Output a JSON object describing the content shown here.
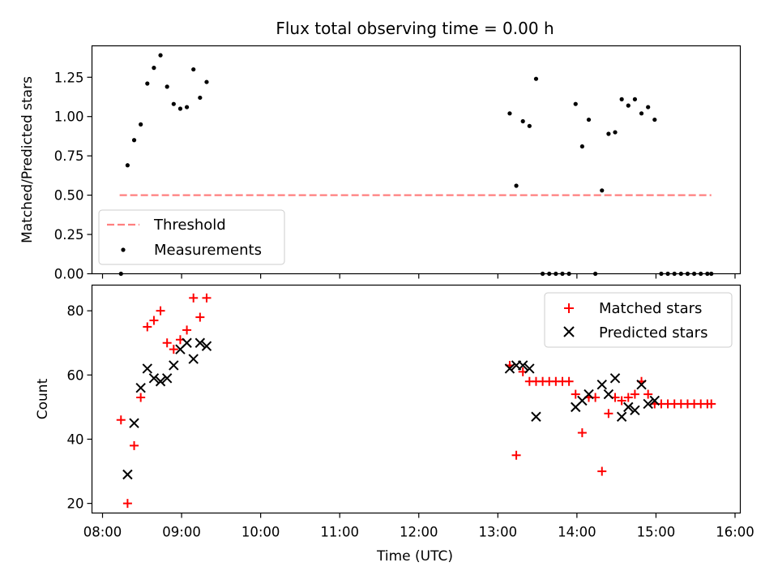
{
  "chart_data": [
    {
      "type": "scatter",
      "title": "Flux total observing time = 0.00 h",
      "xlabel": "",
      "ylabel": "Matched/Predicted stars",
      "xlim": [
        "07:52",
        "16:04"
      ],
      "ylim": [
        0,
        1.45
      ],
      "yticks": [
        "0.00",
        "0.25",
        "0.50",
        "0.75",
        "1.00",
        "1.25"
      ],
      "grid": false,
      "legend_position": "lower-left",
      "series": [
        {
          "name": "Threshold",
          "style": "dashed-line",
          "color": "#ff7f7f",
          "points": [
            {
              "x": "08:13",
              "y": 0.5
            },
            {
              "x": "15:42",
              "y": 0.5
            }
          ]
        },
        {
          "name": "Measurements",
          "style": "dot",
          "color": "#000000",
          "points": [
            {
              "x": "08:14",
              "y": 0.0
            },
            {
              "x": "08:19",
              "y": 0.69
            },
            {
              "x": "08:24",
              "y": 0.85
            },
            {
              "x": "08:29",
              "y": 0.95
            },
            {
              "x": "08:34",
              "y": 1.21
            },
            {
              "x": "08:39",
              "y": 1.31
            },
            {
              "x": "08:44",
              "y": 1.39
            },
            {
              "x": "08:49",
              "y": 1.19
            },
            {
              "x": "08:54",
              "y": 1.08
            },
            {
              "x": "08:59",
              "y": 1.05
            },
            {
              "x": "09:04",
              "y": 1.06
            },
            {
              "x": "09:09",
              "y": 1.3
            },
            {
              "x": "09:14",
              "y": 1.12
            },
            {
              "x": "09:19",
              "y": 1.22
            },
            {
              "x": "13:09",
              "y": 1.02
            },
            {
              "x": "13:14",
              "y": 0.56
            },
            {
              "x": "13:19",
              "y": 0.97
            },
            {
              "x": "13:24",
              "y": 0.94
            },
            {
              "x": "13:29",
              "y": 1.24
            },
            {
              "x": "13:34",
              "y": 0.0
            },
            {
              "x": "13:39",
              "y": 0.0
            },
            {
              "x": "13:44",
              "y": 0.0
            },
            {
              "x": "13:49",
              "y": 0.0
            },
            {
              "x": "13:54",
              "y": 0.0
            },
            {
              "x": "13:59",
              "y": 1.08
            },
            {
              "x": "14:04",
              "y": 0.81
            },
            {
              "x": "14:09",
              "y": 0.98
            },
            {
              "x": "14:14",
              "y": 0.0
            },
            {
              "x": "14:19",
              "y": 0.53
            },
            {
              "x": "14:24",
              "y": 0.89
            },
            {
              "x": "14:29",
              "y": 0.9
            },
            {
              "x": "14:34",
              "y": 1.11
            },
            {
              "x": "14:39",
              "y": 1.07
            },
            {
              "x": "14:44",
              "y": 1.11
            },
            {
              "x": "14:49",
              "y": 1.02
            },
            {
              "x": "14:54",
              "y": 1.06
            },
            {
              "x": "14:59",
              "y": 0.98
            },
            {
              "x": "15:04",
              "y": 0.0
            },
            {
              "x": "15:09",
              "y": 0.0
            },
            {
              "x": "15:14",
              "y": 0.0
            },
            {
              "x": "15:19",
              "y": 0.0
            },
            {
              "x": "15:24",
              "y": 0.0
            },
            {
              "x": "15:29",
              "y": 0.0
            },
            {
              "x": "15:34",
              "y": 0.0
            },
            {
              "x": "15:39",
              "y": 0.0
            },
            {
              "x": "15:42",
              "y": 0.0
            }
          ]
        }
      ]
    },
    {
      "type": "scatter",
      "title": "",
      "xlabel": "Time (UTC)",
      "ylabel": "Count",
      "xlim": [
        "07:52",
        "16:04"
      ],
      "ylim": [
        17,
        88
      ],
      "xticks": [
        "08:00",
        "09:00",
        "10:00",
        "11:00",
        "12:00",
        "13:00",
        "14:00",
        "15:00",
        "16:00"
      ],
      "yticks": [
        "20",
        "40",
        "60",
        "80"
      ],
      "grid": false,
      "legend_position": "upper-right",
      "series": [
        {
          "name": "Matched stars",
          "marker": "+",
          "color": "#ff0000",
          "points": [
            {
              "x": "08:14",
              "y": 46
            },
            {
              "x": "08:19",
              "y": 20
            },
            {
              "x": "08:24",
              "y": 38
            },
            {
              "x": "08:29",
              "y": 53
            },
            {
              "x": "08:34",
              "y": 75
            },
            {
              "x": "08:39",
              "y": 77
            },
            {
              "x": "08:44",
              "y": 80
            },
            {
              "x": "08:49",
              "y": 70
            },
            {
              "x": "08:54",
              "y": 68
            },
            {
              "x": "08:59",
              "y": 71
            },
            {
              "x": "09:04",
              "y": 74
            },
            {
              "x": "09:09",
              "y": 84
            },
            {
              "x": "09:14",
              "y": 78
            },
            {
              "x": "09:19",
              "y": 84
            },
            {
              "x": "13:09",
              "y": 63
            },
            {
              "x": "13:14",
              "y": 35
            },
            {
              "x": "13:19",
              "y": 61
            },
            {
              "x": "13:24",
              "y": 58
            },
            {
              "x": "13:29",
              "y": 58
            },
            {
              "x": "13:34",
              "y": 58
            },
            {
              "x": "13:39",
              "y": 58
            },
            {
              "x": "13:44",
              "y": 58
            },
            {
              "x": "13:49",
              "y": 58
            },
            {
              "x": "13:54",
              "y": 58
            },
            {
              "x": "13:59",
              "y": 54
            },
            {
              "x": "14:04",
              "y": 42
            },
            {
              "x": "14:09",
              "y": 53
            },
            {
              "x": "14:14",
              "y": 53
            },
            {
              "x": "14:19",
              "y": 30
            },
            {
              "x": "14:24",
              "y": 48
            },
            {
              "x": "14:29",
              "y": 53
            },
            {
              "x": "14:34",
              "y": 52
            },
            {
              "x": "14:39",
              "y": 53
            },
            {
              "x": "14:44",
              "y": 54
            },
            {
              "x": "14:49",
              "y": 58
            },
            {
              "x": "14:54",
              "y": 54
            },
            {
              "x": "14:59",
              "y": 51
            },
            {
              "x": "15:04",
              "y": 51
            },
            {
              "x": "15:09",
              "y": 51
            },
            {
              "x": "15:14",
              "y": 51
            },
            {
              "x": "15:19",
              "y": 51
            },
            {
              "x": "15:24",
              "y": 51
            },
            {
              "x": "15:29",
              "y": 51
            },
            {
              "x": "15:34",
              "y": 51
            },
            {
              "x": "15:39",
              "y": 51
            },
            {
              "x": "15:42",
              "y": 51
            }
          ]
        },
        {
          "name": "Predicted stars",
          "marker": "x",
          "color": "#000000",
          "points": [
            {
              "x": "08:19",
              "y": 29
            },
            {
              "x": "08:24",
              "y": 45
            },
            {
              "x": "08:29",
              "y": 56
            },
            {
              "x": "08:34",
              "y": 62
            },
            {
              "x": "08:39",
              "y": 59
            },
            {
              "x": "08:44",
              "y": 58
            },
            {
              "x": "08:49",
              "y": 59
            },
            {
              "x": "08:54",
              "y": 63
            },
            {
              "x": "08:59",
              "y": 68
            },
            {
              "x": "09:04",
              "y": 70
            },
            {
              "x": "09:09",
              "y": 65
            },
            {
              "x": "09:14",
              "y": 70
            },
            {
              "x": "09:19",
              "y": 69
            },
            {
              "x": "13:09",
              "y": 62
            },
            {
              "x": "13:14",
              "y": 63
            },
            {
              "x": "13:19",
              "y": 63
            },
            {
              "x": "13:24",
              "y": 62
            },
            {
              "x": "13:29",
              "y": 47
            },
            {
              "x": "13:59",
              "y": 50
            },
            {
              "x": "14:04",
              "y": 52
            },
            {
              "x": "14:09",
              "y": 54
            },
            {
              "x": "14:19",
              "y": 57
            },
            {
              "x": "14:24",
              "y": 54
            },
            {
              "x": "14:29",
              "y": 59
            },
            {
              "x": "14:34",
              "y": 47
            },
            {
              "x": "14:39",
              "y": 50
            },
            {
              "x": "14:44",
              "y": 49
            },
            {
              "x": "14:49",
              "y": 57
            },
            {
              "x": "14:54",
              "y": 51
            },
            {
              "x": "14:59",
              "y": 52
            }
          ]
        }
      ]
    }
  ]
}
